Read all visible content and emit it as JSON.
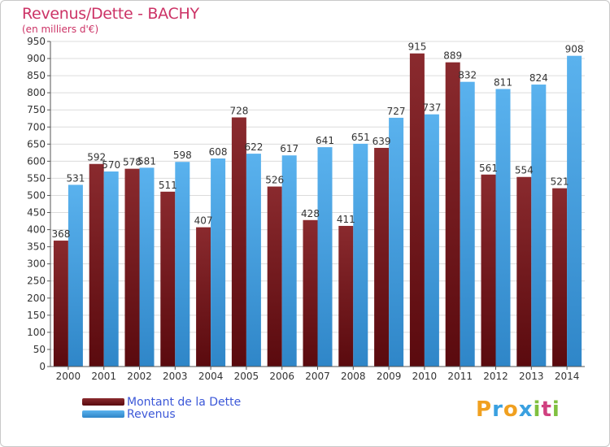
{
  "title": "Revenus/Dette - BACHY",
  "subtitle": "(en milliers d'€)",
  "logo": {
    "letters": [
      "P",
      "r",
      "o",
      "x",
      "i",
      "t",
      "i"
    ],
    "colors": [
      "#f0a020",
      "#3aa0e0",
      "#f0a020",
      "#3aa0e0",
      "#80c040",
      "#d04080",
      "#80c040"
    ]
  },
  "colors": {
    "title": "#cc3366",
    "dette": "#7a1a1e",
    "revenus": "#4da6e6",
    "legend_text": "#3c58d8",
    "grid": "#dcdcdc",
    "axis": "#555555"
  },
  "chart_data": {
    "type": "bar",
    "categories": [
      "2000",
      "2001",
      "2002",
      "2003",
      "2004",
      "2005",
      "2006",
      "2007",
      "2008",
      "2009",
      "2010",
      "2011",
      "2012",
      "2013",
      "2014"
    ],
    "series": [
      {
        "name": "Montant de la Dette",
        "values": [
          368,
          592,
          578,
          511,
          407,
          728,
          526,
          428,
          411,
          639,
          915,
          889,
          561,
          554,
          521
        ]
      },
      {
        "name": "Revenus",
        "values": [
          531,
          570,
          581,
          598,
          608,
          622,
          617,
          641,
          651,
          727,
          737,
          832,
          811,
          824,
          908
        ]
      }
    ],
    "yticks": [
      0,
      50,
      100,
      150,
      200,
      250,
      300,
      350,
      400,
      450,
      500,
      550,
      600,
      650,
      700,
      750,
      800,
      850,
      900,
      950
    ],
    "ylim": [
      0,
      950
    ],
    "grid": true,
    "legend_position": "bottom-left"
  }
}
